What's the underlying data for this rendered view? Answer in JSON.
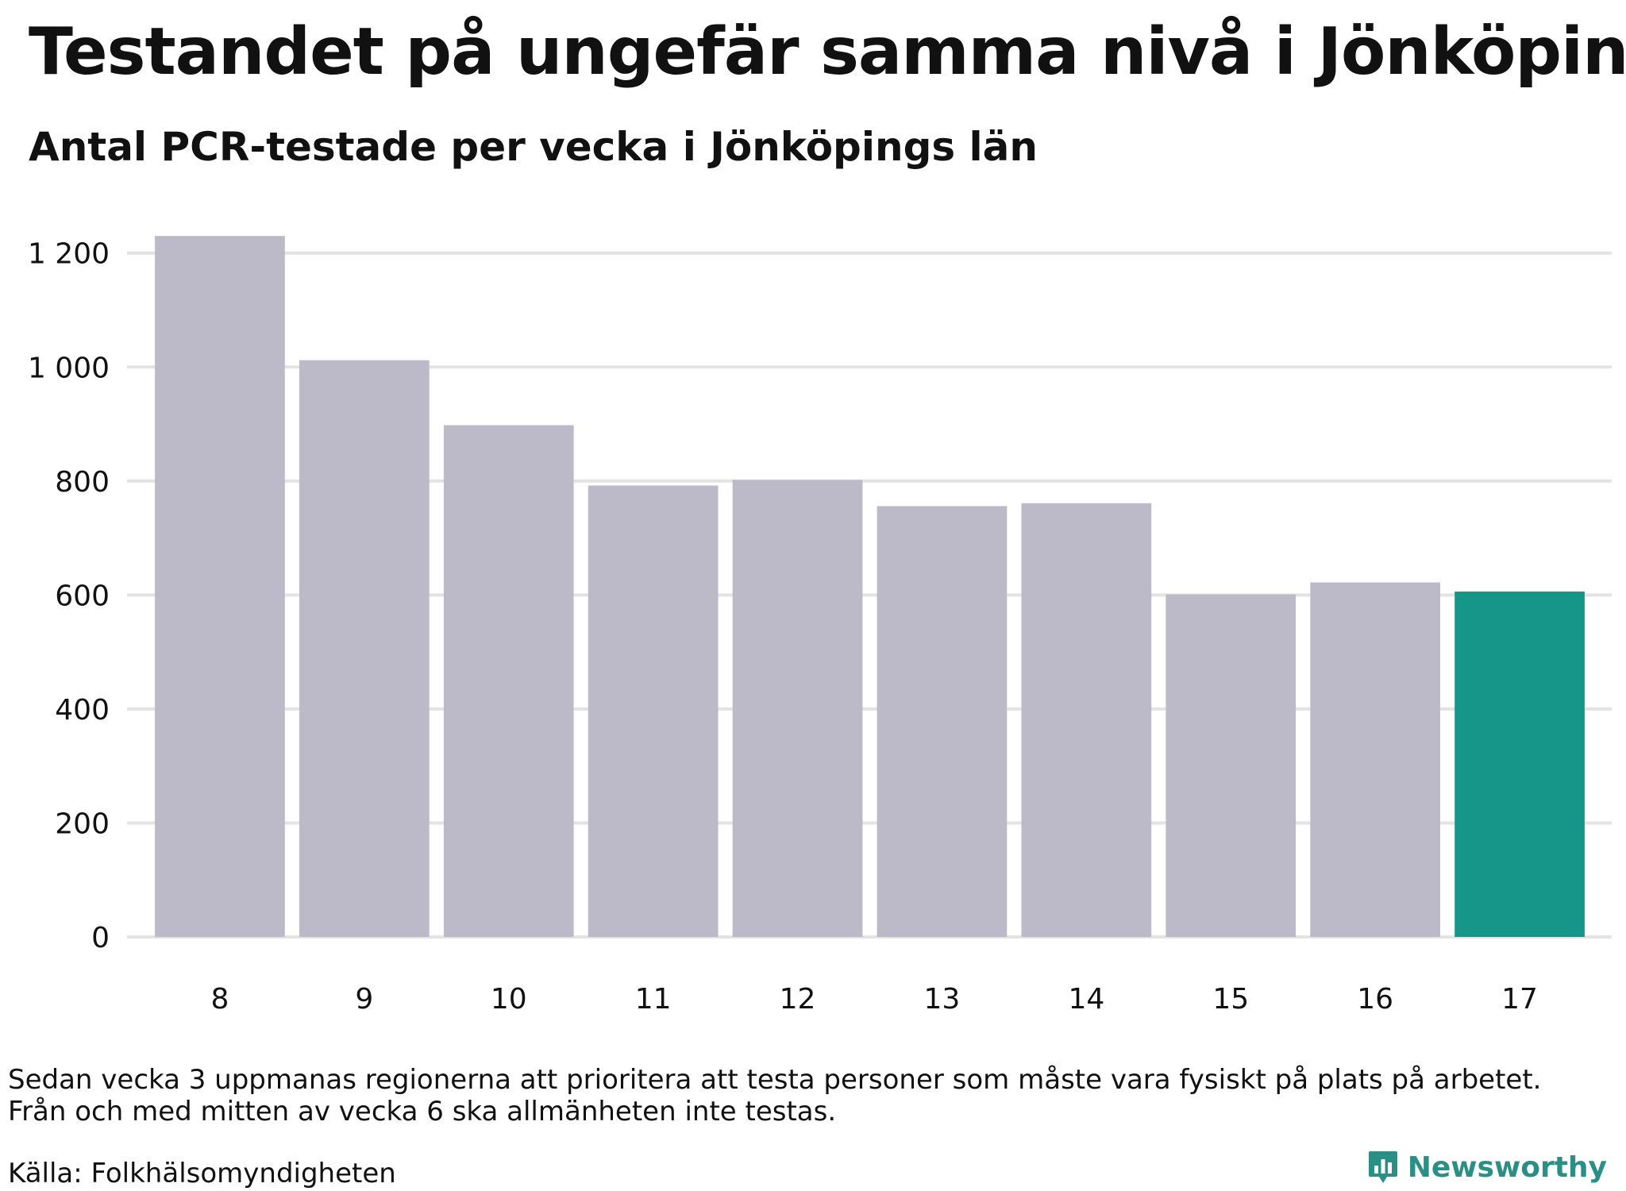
{
  "header": {
    "title": "Testandet på ungefär samma nivå i Jönköping",
    "subtitle": "Antal PCR-testade per vecka i Jönköpings län"
  },
  "chart_data": {
    "type": "bar",
    "title": "Testandet på ungefär samma nivå i Jönköping",
    "subtitle": "Antal PCR-testade per vecka i Jönköpings län",
    "categories": [
      "8",
      "9",
      "10",
      "11",
      "12",
      "13",
      "14",
      "15",
      "16",
      "17"
    ],
    "values": [
      1230,
      1012,
      898,
      792,
      802,
      756,
      761,
      601,
      622,
      606
    ],
    "yticks": [
      "0",
      "200",
      "400",
      "600",
      "800",
      "1 000",
      "1 200"
    ],
    "ytick_values": [
      0,
      200,
      400,
      600,
      800,
      1000,
      1200
    ],
    "ylim": [
      0,
      1240
    ],
    "grid": true,
    "colors": {
      "default": "#bcbac8",
      "highlight": "#169689",
      "grid": "#e3e3e3"
    },
    "highlight_category": "17"
  },
  "footer": {
    "note_line1": "Sedan vecka 3 uppmanas regionerna att prioritera att testa personer som måste vara fysiskt på plats på arbetet.",
    "note_line2": "Från och med mitten av vecka 6 ska allmänheten inte testas.",
    "source": "Källa: Folkhälsomyndigheten",
    "brand": "Newsworthy",
    "brand_color": "#2a8f85",
    "brand_icon": "bar-chart-speech-bubble-icon"
  }
}
